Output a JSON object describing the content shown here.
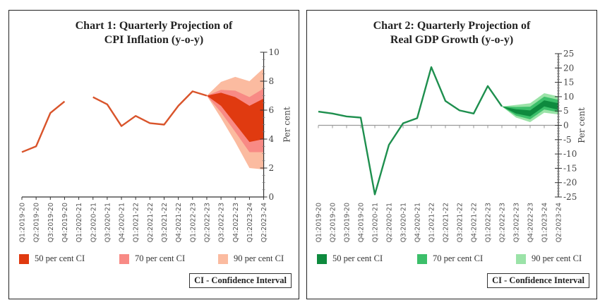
{
  "chart_data": [
    {
      "type": "line",
      "title": "Chart 1: Quarterly Projection of",
      "title_line2": "CPI Inflation (y-o-y)",
      "xlabel": "",
      "ylabel": "Per cent",
      "ylim": [
        0,
        10
      ],
      "yticks": [
        0,
        2,
        4,
        6,
        8,
        10
      ],
      "y_axis_side": "right",
      "grid": false,
      "categories": [
        "Q1:2019-20",
        "Q2:2019-20",
        "Q3:2019-20",
        "Q4:2019-20",
        "Q1:2020-21",
        "Q2:2020-21",
        "Q3:2020-21",
        "Q4:2020-21",
        "Q1:2021-22",
        "Q2:2021-22",
        "Q3:2021-22",
        "Q4:2021-22",
        "Q1:2022-23",
        "Q2:2022-23",
        "Q3:2022-23",
        "Q4:2022-23",
        "Q1:2023-24",
        "Q2:2023-24"
      ],
      "series": [
        {
          "name": "CPI inflation",
          "values": [
            3.1,
            3.5,
            5.8,
            6.6,
            null,
            6.9,
            6.4,
            4.9,
            5.6,
            5.1,
            5.0,
            6.3,
            7.3,
            7.0,
            null,
            null,
            null,
            null
          ]
        }
      ],
      "fan": {
        "start_index": 13,
        "start_value": 7.0,
        "bands": [
          {
            "name": "90 per cent CI",
            "lower": [
              5.45,
              3.8,
              2.0,
              1.9
            ],
            "upper": [
              7.95,
              8.3,
              8.0,
              8.9
            ]
          },
          {
            "name": "70 per cent CI",
            "lower": [
              5.85,
              4.5,
              3.1,
              3.1
            ],
            "upper": [
              7.4,
              7.35,
              6.9,
              7.5
            ]
          },
          {
            "name": "50 per cent CI",
            "lower": [
              6.3,
              5.05,
              3.8,
              4.0
            ],
            "upper": [
              7.2,
              6.9,
              6.3,
              6.8
            ]
          }
        ]
      },
      "colors": {
        "line": "#D9542B",
        "ci50": "#E03A10",
        "ci70": "#F88A85",
        "ci90": "#FBBBA0"
      },
      "legend": [
        "50 per cent CI",
        "70 per cent CI",
        "90 per cent CI"
      ],
      "legend_position": "bottom",
      "note": "CI - Confidence Interval"
    },
    {
      "type": "line",
      "title": "Chart 2: Quarterly Projection of",
      "title_line2": "Real GDP Growth (y-o-y)",
      "xlabel": "",
      "ylabel": "Per cent",
      "ylim": [
        -25,
        25
      ],
      "yticks": [
        -25,
        -20,
        -15,
        -10,
        -5,
        0,
        5,
        10,
        15,
        20,
        25
      ],
      "y_axis_side": "right",
      "grid": false,
      "categories": [
        "Q1:2019-20",
        "Q2:2019-20",
        "Q3:2019-20",
        "Q4:2019-20",
        "Q1:2020-21",
        "Q2:2020-21",
        "Q3:2020-21",
        "Q4:2020-21",
        "Q1:2021-22",
        "Q2:2021-22",
        "Q3:2021-22",
        "Q4:2021-22",
        "Q1:2022-23",
        "Q2:2022-23",
        "Q3:2022-23",
        "Q4:2022-23",
        "Q1:2023-24",
        "Q2:2023-24"
      ],
      "series": [
        {
          "name": "Real GDP growth",
          "values": [
            4.8,
            4.1,
            3.1,
            2.7,
            -24.1,
            -6.8,
            0.7,
            2.5,
            20.3,
            8.5,
            5.2,
            4.1,
            13.7,
            6.6,
            null,
            null,
            null,
            null
          ]
        }
      ],
      "fan": {
        "start_index": 13,
        "start_value": 6.6,
        "bands": [
          {
            "name": "90 per cent CI",
            "lower": [
              2.7,
              1.1,
              4.4,
              3.8
            ],
            "upper": [
              7.1,
              7.7,
              11.2,
              10.1
            ]
          },
          {
            "name": "70 per cent CI",
            "lower": [
              3.4,
              2.1,
              5.5,
              4.6
            ],
            "upper": [
              6.4,
              6.5,
              10.0,
              8.9
            ]
          },
          {
            "name": "50 per cent CI",
            "lower": [
              4.1,
              3.1,
              6.6,
              5.4
            ],
            "upper": [
              5.6,
              5.2,
              8.7,
              7.7
            ]
          }
        ]
      },
      "colors": {
        "line": "#1E8F4E",
        "ci50": "#0E8A3E",
        "ci70": "#3CBF6A",
        "ci90": "#9BE3A8"
      },
      "legend": [
        "50 per cent CI",
        "70 per cent CI",
        "90 per cent CI"
      ],
      "legend_position": "bottom",
      "note": "CI - Confidence Interval"
    }
  ]
}
